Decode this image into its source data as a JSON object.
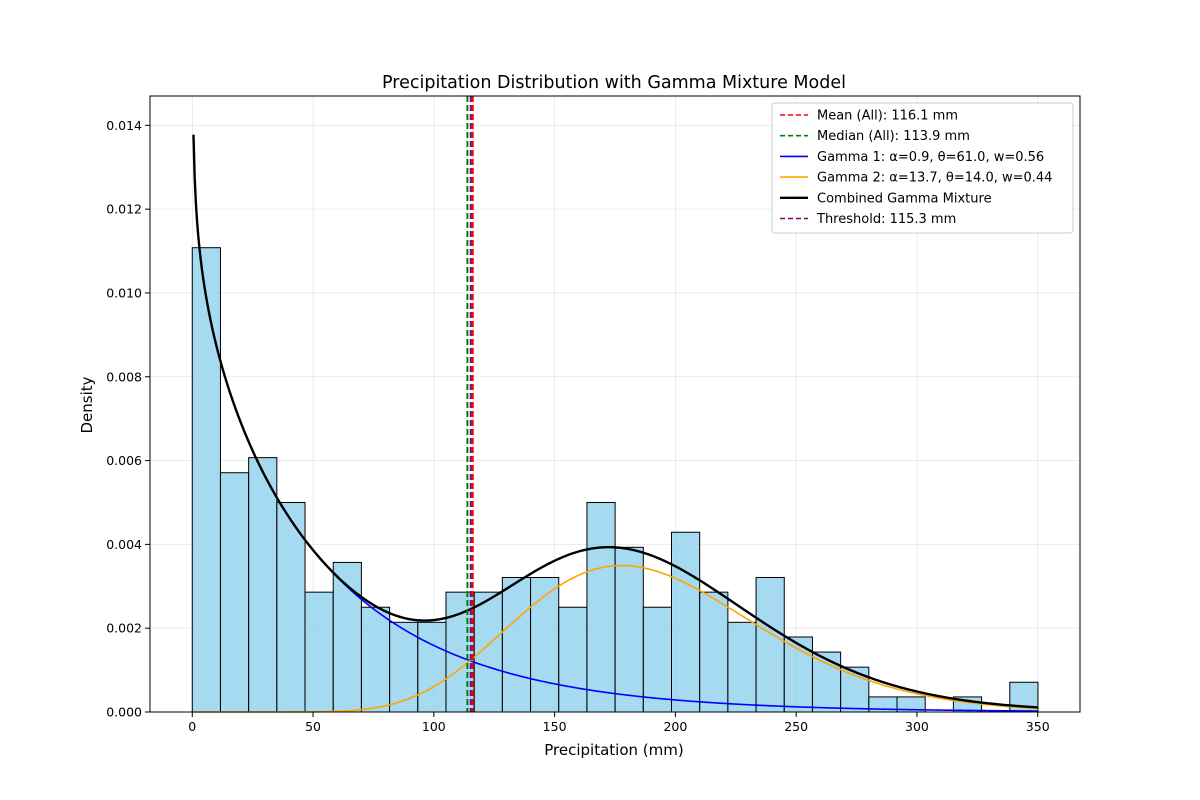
{
  "chart_data": {
    "type": "bar",
    "title": "Precipitation Distribution with Gamma Mixture Model",
    "xlabel": "Precipitation (mm)",
    "ylabel": "Density",
    "xlim": [
      -17.5,
      367.5
    ],
    "ylim": [
      0,
      0.0147
    ],
    "xticks": [
      0,
      50,
      100,
      150,
      200,
      250,
      300,
      350
    ],
    "yticks": [
      0.0,
      0.002,
      0.004,
      0.006,
      0.008,
      0.01,
      0.012,
      0.014
    ],
    "ytick_labels": [
      "0.000",
      "0.002",
      "0.004",
      "0.006",
      "0.008",
      "0.010",
      "0.012",
      "0.014"
    ],
    "grid": true,
    "legend_position": "upper right",
    "histogram": {
      "bin_start": 0,
      "bin_width": 11.67,
      "densities": [
        0.01108,
        0.00571,
        0.00607,
        0.005,
        0.00286,
        0.00357,
        0.0025,
        0.00214,
        0.00214,
        0.00286,
        0.00286,
        0.00321,
        0.00321,
        0.0025,
        0.005,
        0.00393,
        0.0025,
        0.00429,
        0.00286,
        0.00214,
        0.00321,
        0.00179,
        0.00143,
        0.00107,
        0.00036,
        0.00036,
        0.0,
        0.00036,
        0.0,
        0.00071
      ],
      "fill_color": "#87CEEB",
      "edge_color": "#000000"
    },
    "vlines": [
      {
        "label": "Mean (All): 116.1 mm",
        "x": 116.1,
        "color": "#ff0000"
      },
      {
        "label": "Median (All): 113.9 mm",
        "x": 113.9,
        "color": "#008000"
      },
      {
        "label": "Threshold: 115.3 mm",
        "x": 115.3,
        "color": "#800080"
      }
    ],
    "series": [
      {
        "name": "Gamma 1: α=0.9, θ=61.0, w=0.56",
        "alpha": 0.9,
        "theta": 61.0,
        "weight": 0.56,
        "color": "#0000ff",
        "linewidth": 1.6
      },
      {
        "name": "Gamma 2: α=13.7, θ=14.0, w=0.44",
        "alpha": 13.7,
        "theta": 14.0,
        "weight": 0.44,
        "color": "#ffa500",
        "linewidth": 1.6
      },
      {
        "name": "Combined Gamma Mixture",
        "color": "#000000",
        "linewidth": 2.4
      }
    ],
    "curve_x_range": [
      0.5,
      350
    ],
    "legend_order": [
      {
        "label": "Mean (All): 116.1 mm",
        "color": "#ff0000",
        "dashed": true
      },
      {
        "label": "Median (All): 113.9 mm",
        "color": "#008000",
        "dashed": true
      },
      {
        "label": "Gamma 1: α=0.9, θ=61.0, w=0.56",
        "color": "#0000ff",
        "dashed": false
      },
      {
        "label": "Gamma 2: α=13.7, θ=14.0, w=0.44",
        "color": "#ffa500",
        "dashed": false
      },
      {
        "label": "Combined Gamma Mixture",
        "color": "#000000",
        "dashed": false,
        "thick": true
      },
      {
        "label": "Threshold: 115.3 mm",
        "color": "#800080",
        "dashed": true
      }
    ]
  }
}
